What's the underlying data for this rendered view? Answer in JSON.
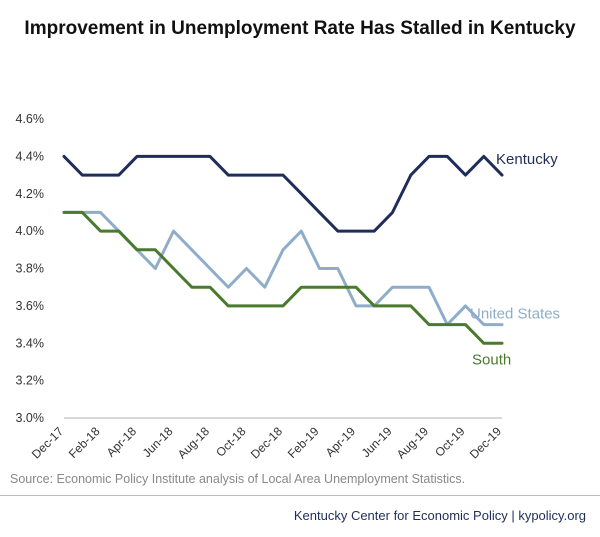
{
  "chart_data": {
    "type": "line",
    "title": "Improvement in Unemployment Rate Has Stalled in Kentucky",
    "x": [
      "Dec-17",
      "Jan-18",
      "Feb-18",
      "Mar-18",
      "Apr-18",
      "May-18",
      "Jun-18",
      "Jul-18",
      "Aug-18",
      "Sep-18",
      "Oct-18",
      "Nov-18",
      "Dec-18",
      "Jan-19",
      "Feb-19",
      "Mar-19",
      "Apr-19",
      "May-19",
      "Jun-19",
      "Jul-19",
      "Aug-19",
      "Sep-19",
      "Oct-19",
      "Nov-19",
      "Dec-19"
    ],
    "xtick_labels": [
      "Dec-17",
      "Feb-18",
      "Apr-18",
      "Jun-18",
      "Aug-18",
      "Oct-18",
      "Dec-18",
      "Feb-19",
      "Apr-19",
      "Jun-19",
      "Aug-19",
      "Oct-19",
      "Dec-19"
    ],
    "ylim": [
      3.0,
      4.6
    ],
    "yticks": [
      "3.0%",
      "3.2%",
      "3.4%",
      "3.6%",
      "3.8%",
      "4.0%",
      "4.2%",
      "4.4%",
      "4.6%"
    ],
    "grid": false,
    "series": [
      {
        "name": "Kentucky",
        "color": "#1f2d5a",
        "values": [
          4.4,
          4.3,
          4.3,
          4.3,
          4.4,
          4.4,
          4.4,
          4.4,
          4.4,
          4.3,
          4.3,
          4.3,
          4.3,
          4.2,
          4.1,
          4.0,
          4.0,
          4.0,
          4.1,
          4.3,
          4.4,
          4.4,
          4.3,
          4.4,
          4.3
        ]
      },
      {
        "name": "United States",
        "color": "#8fadc8",
        "values": [
          4.1,
          4.1,
          4.1,
          4.0,
          3.9,
          3.8,
          4.0,
          3.9,
          3.8,
          3.7,
          3.8,
          3.7,
          3.9,
          4.0,
          3.8,
          3.8,
          3.6,
          3.6,
          3.7,
          3.7,
          3.7,
          3.5,
          3.6,
          3.5,
          3.5
        ]
      },
      {
        "name": "South",
        "color": "#4a7a2e",
        "values": [
          4.1,
          4.1,
          4.0,
          4.0,
          3.9,
          3.9,
          3.8,
          3.7,
          3.7,
          3.6,
          3.6,
          3.6,
          3.6,
          3.7,
          3.7,
          3.7,
          3.7,
          3.6,
          3.6,
          3.6,
          3.5,
          3.5,
          3.5,
          3.4,
          3.4
        ]
      }
    ]
  },
  "source": "Source: Economic Policy Institute analysis of Local Area Unemployment Statistics.",
  "footer": "Kentucky Center for Economic Policy | kypolicy.org"
}
